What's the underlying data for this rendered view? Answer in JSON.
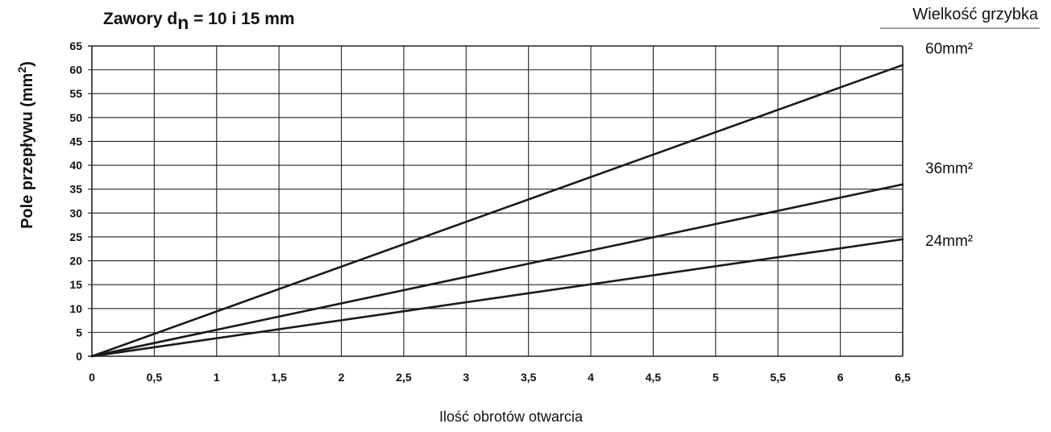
{
  "chart_data": {
    "type": "line",
    "title": {
      "prefix": "Zawory d",
      "subscript": "n",
      "suffix": " = 10 i 15 mm"
    },
    "ylabel": {
      "main": "Pole przepływu (mm",
      "sup": "2",
      "close": ")"
    },
    "xlabel": "Ilość obrotów otwarcia",
    "legend_title": "Wielkość grzybka",
    "x_ticks": [
      "0",
      "0,5",
      "1",
      "1,5",
      "2",
      "2,5",
      "3",
      "3,5",
      "4",
      "4,5",
      "5",
      "5,5",
      "6",
      "6,5"
    ],
    "y_ticks": [
      "0",
      "5",
      "10",
      "15",
      "20",
      "25",
      "30",
      "35",
      "40",
      "45",
      "50",
      "55",
      "60",
      "65"
    ],
    "xlim": [
      0,
      6.5
    ],
    "ylim": [
      0,
      65
    ],
    "grid": true,
    "series": [
      {
        "name": "60mm²",
        "x": [
          0,
          6.5
        ],
        "y": [
          0,
          61
        ]
      },
      {
        "name": "36mm²",
        "x": [
          0,
          6.5
        ],
        "y": [
          0,
          36
        ]
      },
      {
        "name": "24mm²",
        "x": [
          0,
          6.5
        ],
        "y": [
          0,
          24.5
        ]
      }
    ]
  }
}
